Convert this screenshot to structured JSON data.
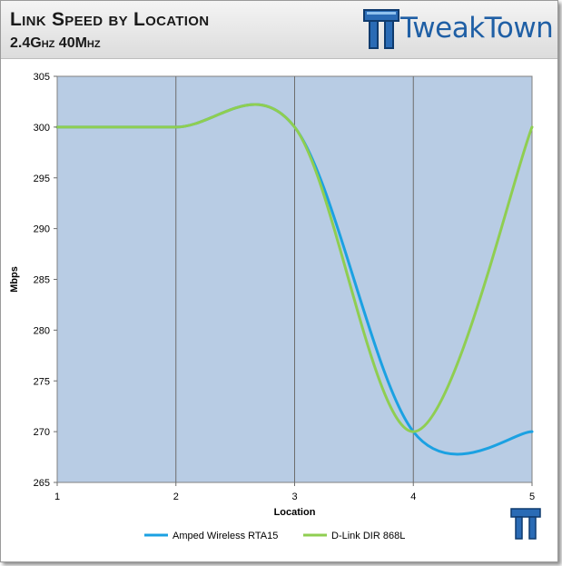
{
  "header": {
    "title": "Link Speed by Location",
    "subtitle": "2.4Ghz 40Mhz",
    "brand": "TweakTown"
  },
  "colors": {
    "plot_background": "#b8cce4",
    "series_1": "#1ba1e2",
    "series_2": "#8fce51",
    "brand": "#1f5fa5"
  },
  "chart_data": {
    "type": "line",
    "title": "",
    "xlabel": "Location",
    "ylabel": "Mbps",
    "x": [
      1,
      2,
      3,
      4,
      5
    ],
    "x_ticks": [
      "1",
      "2",
      "3",
      "4",
      "5"
    ],
    "y_ticks": [
      "265",
      "270",
      "275",
      "280",
      "285",
      "290",
      "295",
      "300",
      "305"
    ],
    "ylim": [
      265,
      305
    ],
    "xlim": [
      1,
      5
    ],
    "smooth": true,
    "vertical_grid": true,
    "horizontal_grid": false,
    "legend_position": "bottom",
    "series": [
      {
        "name": "Amped Wireless RTA15",
        "color": "#1ba1e2",
        "values": [
          300,
          300,
          300,
          270,
          270
        ]
      },
      {
        "name": "D-Link DIR 868L",
        "color": "#8fce51",
        "values": [
          300,
          300,
          300,
          270,
          300
        ]
      }
    ]
  }
}
